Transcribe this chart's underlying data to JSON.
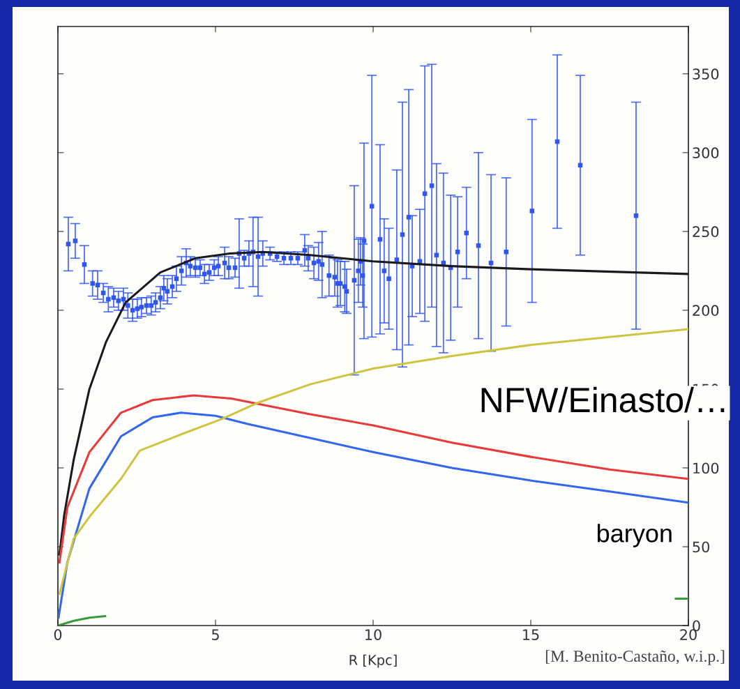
{
  "chart_data": {
    "type": "line",
    "xlabel": "R [Kpc]",
    "xlim": [
      0,
      20
    ],
    "xticks": [
      0,
      5,
      10,
      15,
      20
    ],
    "ylim": [
      0,
      380
    ],
    "yticks": [
      0,
      50,
      100,
      150,
      200,
      250,
      300,
      350
    ],
    "grid": false,
    "legend": false,
    "line_style": "solid",
    "series": [
      {
        "type": "scatter",
        "color": "#2f55f5",
        "marker": "square",
        "x": [
          0.33,
          0.55,
          0.84,
          1.1,
          1.26,
          1.44,
          1.6,
          1.77,
          1.92,
          2.08,
          2.22,
          2.37,
          2.52,
          2.65,
          2.81,
          2.96,
          3.1,
          3.25,
          3.36,
          3.47,
          3.63,
          3.76,
          3.92,
          4.07,
          4.2,
          4.36,
          4.51,
          4.65,
          4.8,
          4.96,
          5.09,
          5.29,
          5.42,
          5.62,
          5.75,
          5.91,
          6.06,
          6.19,
          6.35,
          6.5,
          6.73,
          6.95,
          7.17,
          7.39,
          7.61,
          7.83,
          7.94,
          8.12,
          8.27,
          8.38,
          8.6,
          8.78,
          8.87,
          8.96,
          9.1,
          9.16,
          9.4,
          9.53,
          9.6,
          9.67,
          9.71,
          9.96,
          10.22,
          10.35,
          10.5,
          10.75,
          10.93,
          11.13,
          11.24,
          11.48,
          11.64,
          11.86,
          12.01,
          12.23,
          12.46,
          12.68,
          12.96,
          13.34,
          13.74,
          14.22,
          15.04,
          15.84,
          16.57,
          18.34
        ],
        "values": [
          242,
          244,
          229,
          217,
          216,
          211,
          207,
          208,
          206,
          207,
          203,
          200,
          201,
          202,
          203,
          203,
          205,
          208,
          214,
          212,
          215,
          220,
          225,
          230,
          228,
          227,
          227,
          223,
          224,
          227,
          228,
          230,
          227,
          227,
          236,
          233,
          236,
          237,
          234,
          236,
          236,
          234,
          233,
          233,
          233,
          238,
          233,
          230,
          231,
          229,
          222,
          221,
          217,
          217,
          215,
          212,
          219,
          225,
          231,
          222,
          244,
          266,
          245,
          225,
          220,
          232,
          248,
          259,
          228,
          231,
          274,
          279,
          235,
          230,
          227,
          237,
          249,
          241,
          230,
          237,
          263,
          307,
          292,
          260
        ],
        "errors": [
          17,
          11,
          12,
          8,
          9,
          6,
          8,
          6,
          6,
          7,
          8,
          7,
          6,
          6,
          5,
          6,
          6,
          7,
          8,
          8,
          7,
          8,
          9,
          9,
          6,
          6,
          5,
          6,
          5,
          5,
          6,
          10,
          7,
          6,
          22,
          5,
          8,
          22,
          25,
          8,
          4,
          3,
          4,
          4,
          4,
          10,
          8,
          10,
          12,
          21,
          13,
          12,
          15,
          14,
          16,
          14,
          60,
          20,
          15,
          20,
          62,
          83,
          60,
          33,
          32,
          57,
          84,
          81,
          32,
          33,
          81,
          77,
          58,
          57,
          46,
          35,
          29,
          59,
          56,
          47,
          58,
          55,
          57,
          72
        ]
      },
      {
        "color": "#1a1a1a",
        "x": [
          0.05,
          0.2,
          0.5,
          1.0,
          1.53,
          2.15,
          3.25,
          4.36,
          5.46,
          6.5,
          8,
          10,
          12.5,
          15,
          18.3,
          20
        ],
        "values": [
          45,
          70,
          105,
          150,
          180,
          205,
          224,
          233,
          236,
          237,
          235,
          231,
          228,
          226,
          224,
          223
        ]
      },
      {
        "color": "#e83a3a",
        "x": [
          0.05,
          0.3,
          1,
          2,
          3,
          4.3,
          5.5,
          6.5,
          8,
          10,
          12.5,
          15,
          17.5,
          20
        ],
        "values": [
          40,
          75,
          110,
          135,
          143,
          146,
          144,
          140,
          134,
          127,
          116,
          107,
          99,
          93
        ]
      },
      {
        "color": "#3366ee",
        "x": [
          0.02,
          0.3,
          1,
          2,
          3,
          3.9,
          5,
          6,
          8,
          10,
          12.5,
          15,
          17.5,
          20
        ],
        "values": [
          5,
          40,
          87,
          120,
          132,
          135,
          133,
          128,
          119,
          110,
          100,
          92,
          85,
          78
        ]
      },
      {
        "color": "#cdc540",
        "x": [
          0.05,
          0.5,
          1,
          2,
          2.6,
          4,
          5.2,
          6.3,
          8,
          10,
          12.5,
          15,
          17.5,
          20
        ],
        "values": [
          20,
          55,
          69,
          93,
          111,
          122,
          131,
          141,
          153,
          163,
          171,
          178,
          183,
          188
        ]
      },
      {
        "color": "#3a9a3a",
        "x": [
          0,
          0.5,
          1,
          1.5,
          10,
          19.6,
          20
        ],
        "values": [
          0,
          3,
          5,
          6,
          null,
          17,
          17
        ]
      }
    ],
    "annotations": [
      "NFW/Einasto/…",
      "baryon",
      "[M. Benito-Castaño, w.i.p.]"
    ]
  }
}
